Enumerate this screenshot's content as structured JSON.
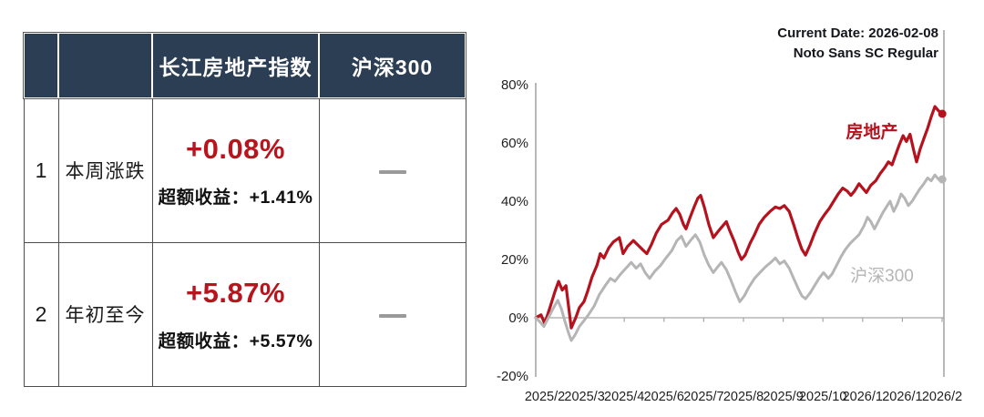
{
  "table": {
    "headers": {
      "num": "",
      "label": "",
      "index": "长江房地产指数",
      "benchmark": "沪深300"
    },
    "rows": [
      {
        "num": "1",
        "label": "本周涨跌",
        "value": "+0.08%",
        "excess": "超额收益：+1.41%",
        "benchmark_dash": "—"
      },
      {
        "num": "2",
        "label": "年初至今",
        "value": "+5.87%",
        "excess": "超额收益：+5.57%",
        "benchmark_dash": "—"
      }
    ]
  },
  "colors": {
    "header_navy": "#2c3e54",
    "accent_red": "#b9141e",
    "line_red": "#b5121e",
    "line_gray": "#b5b5b5",
    "axis_gray": "#a6a6a6",
    "dash_gray": "#9a9a9a"
  },
  "chart_data": {
    "type": "line",
    "title": "",
    "xlabel": "",
    "ylabel": "",
    "ylim": [
      -20,
      80
    ],
    "grid": "zero-line only",
    "legend_position": "inline labels on lines",
    "annotations": [
      "Current Date: 2026-02-08",
      "Noto Sans SC Regular"
    ],
    "x_tick_labels": [
      "2025/2",
      "2025/3",
      "2025/4",
      "2025/6",
      "2025/7",
      "2025/8",
      "2025/9",
      "2025/10",
      "2026/1",
      "2026/1",
      "2026/2"
    ],
    "y_ticks": [
      {
        "label": "80%",
        "value": 80
      },
      {
        "label": "60%",
        "value": 60
      },
      {
        "label": "40%",
        "value": 40
      },
      {
        "label": "20%",
        "value": 20
      },
      {
        "label": "0%",
        "value": 0
      },
      {
        "label": "-20%",
        "value": -20
      }
    ],
    "series": [
      {
        "name": "房地产",
        "color": "#b5121e",
        "width": 3.2,
        "end_dot": true,
        "points": [
          [
            0.0,
            0
          ],
          [
            0.013,
            1
          ],
          [
            0.022,
            -2
          ],
          [
            0.036,
            4
          ],
          [
            0.047,
            9
          ],
          [
            0.056,
            12.5
          ],
          [
            0.065,
            9.5
          ],
          [
            0.074,
            11
          ],
          [
            0.087,
            -3.5
          ],
          [
            0.098,
            0
          ],
          [
            0.107,
            3.5
          ],
          [
            0.118,
            5.5
          ],
          [
            0.127,
            9
          ],
          [
            0.138,
            14
          ],
          [
            0.15,
            18
          ],
          [
            0.158,
            22
          ],
          [
            0.167,
            20.5
          ],
          [
            0.179,
            24
          ],
          [
            0.19,
            26
          ],
          [
            0.205,
            27.5
          ],
          [
            0.214,
            22
          ],
          [
            0.225,
            24.5
          ],
          [
            0.239,
            26.5
          ],
          [
            0.25,
            25
          ],
          [
            0.261,
            23.5
          ],
          [
            0.272,
            22
          ],
          [
            0.283,
            25
          ],
          [
            0.295,
            29
          ],
          [
            0.308,
            32
          ],
          [
            0.324,
            33.5
          ],
          [
            0.335,
            36
          ],
          [
            0.344,
            37.5
          ],
          [
            0.353,
            35.5
          ],
          [
            0.362,
            32
          ],
          [
            0.368,
            30.5
          ],
          [
            0.377,
            34
          ],
          [
            0.388,
            38
          ],
          [
            0.397,
            41
          ],
          [
            0.404,
            42
          ],
          [
            0.413,
            38
          ],
          [
            0.424,
            32
          ],
          [
            0.435,
            27.5
          ],
          [
            0.446,
            29.5
          ],
          [
            0.455,
            31
          ],
          [
            0.467,
            33
          ],
          [
            0.475,
            30
          ],
          [
            0.487,
            26
          ],
          [
            0.496,
            22.5
          ],
          [
            0.504,
            20
          ],
          [
            0.513,
            21.5
          ],
          [
            0.525,
            25.5
          ],
          [
            0.536,
            28.5
          ],
          [
            0.547,
            32
          ],
          [
            0.56,
            34.5
          ],
          [
            0.574,
            36.5
          ],
          [
            0.587,
            38
          ],
          [
            0.598,
            37.5
          ],
          [
            0.609,
            38.5
          ],
          [
            0.621,
            36.5
          ],
          [
            0.632,
            32
          ],
          [
            0.643,
            27
          ],
          [
            0.652,
            23.5
          ],
          [
            0.661,
            21.5
          ],
          [
            0.672,
            25
          ],
          [
            0.683,
            29
          ],
          [
            0.696,
            33
          ],
          [
            0.708,
            35.5
          ],
          [
            0.719,
            37.5
          ],
          [
            0.73,
            40
          ],
          [
            0.741,
            42.5
          ],
          [
            0.752,
            44.5
          ],
          [
            0.763,
            43.5
          ],
          [
            0.772,
            42
          ],
          [
            0.781,
            43.5
          ],
          [
            0.792,
            46
          ],
          [
            0.801,
            44.5
          ],
          [
            0.81,
            43
          ],
          [
            0.821,
            45.5
          ],
          [
            0.833,
            47
          ],
          [
            0.844,
            49.5
          ],
          [
            0.855,
            51.5
          ],
          [
            0.864,
            53.5
          ],
          [
            0.873,
            52.5
          ],
          [
            0.882,
            56
          ],
          [
            0.891,
            59.5
          ],
          [
            0.9,
            62.5
          ],
          [
            0.908,
            60.5
          ],
          [
            0.917,
            63
          ],
          [
            0.926,
            57.5
          ],
          [
            0.933,
            53.5
          ],
          [
            0.942,
            58
          ],
          [
            0.951,
            61.5
          ],
          [
            0.96,
            65
          ],
          [
            0.969,
            69
          ],
          [
            0.978,
            72.5
          ],
          [
            0.987,
            71
          ],
          [
            0.996,
            70
          ]
        ]
      },
      {
        "name": "沪深300",
        "color": "#b5b5b5",
        "width": 3,
        "end_dot": true,
        "points": [
          [
            0.0,
            0
          ],
          [
            0.011,
            -1.5
          ],
          [
            0.02,
            -3
          ],
          [
            0.031,
            0
          ],
          [
            0.042,
            3
          ],
          [
            0.054,
            6
          ],
          [
            0.063,
            3
          ],
          [
            0.071,
            -1
          ],
          [
            0.08,
            -5
          ],
          [
            0.087,
            -7.8
          ],
          [
            0.096,
            -6
          ],
          [
            0.107,
            -3
          ],
          [
            0.118,
            -1
          ],
          [
            0.129,
            1
          ],
          [
            0.143,
            4
          ],
          [
            0.156,
            8
          ],
          [
            0.17,
            11
          ],
          [
            0.183,
            13.5
          ],
          [
            0.194,
            12.5
          ],
          [
            0.208,
            15
          ],
          [
            0.221,
            17
          ],
          [
            0.234,
            19
          ],
          [
            0.246,
            17
          ],
          [
            0.257,
            18.5
          ],
          [
            0.268,
            15.5
          ],
          [
            0.279,
            13.5
          ],
          [
            0.292,
            16
          ],
          [
            0.306,
            18
          ],
          [
            0.319,
            20.5
          ],
          [
            0.333,
            23
          ],
          [
            0.346,
            26.5
          ],
          [
            0.357,
            28
          ],
          [
            0.368,
            24.5
          ],
          [
            0.379,
            26.5
          ],
          [
            0.391,
            28.5
          ],
          [
            0.402,
            26
          ],
          [
            0.413,
            21.5
          ],
          [
            0.424,
            18
          ],
          [
            0.435,
            15.5
          ],
          [
            0.446,
            17.5
          ],
          [
            0.455,
            19
          ],
          [
            0.467,
            16.5
          ],
          [
            0.478,
            13
          ],
          [
            0.489,
            9
          ],
          [
            0.5,
            5.5
          ],
          [
            0.511,
            7.5
          ],
          [
            0.522,
            10.5
          ],
          [
            0.536,
            13.5
          ],
          [
            0.549,
            15.5
          ],
          [
            0.563,
            17.5
          ],
          [
            0.576,
            19
          ],
          [
            0.587,
            20.5
          ],
          [
            0.598,
            18.5
          ],
          [
            0.609,
            19.5
          ],
          [
            0.621,
            17
          ],
          [
            0.632,
            13.5
          ],
          [
            0.643,
            10
          ],
          [
            0.652,
            7.5
          ],
          [
            0.661,
            6.5
          ],
          [
            0.672,
            8.5
          ],
          [
            0.683,
            11
          ],
          [
            0.694,
            13.5
          ],
          [
            0.705,
            15.5
          ],
          [
            0.717,
            13.5
          ],
          [
            0.726,
            15
          ],
          [
            0.737,
            18
          ],
          [
            0.748,
            21
          ],
          [
            0.759,
            23.5
          ],
          [
            0.77,
            25.5
          ],
          [
            0.781,
            27
          ],
          [
            0.792,
            28.5
          ],
          [
            0.804,
            31.5
          ],
          [
            0.813,
            34.5
          ],
          [
            0.821,
            33
          ],
          [
            0.83,
            30.5
          ],
          [
            0.839,
            33
          ],
          [
            0.85,
            36
          ],
          [
            0.859,
            38
          ],
          [
            0.868,
            40
          ],
          [
            0.877,
            36.5
          ],
          [
            0.886,
            39
          ],
          [
            0.895,
            42.5
          ],
          [
            0.904,
            41
          ],
          [
            0.913,
            38.5
          ],
          [
            0.922,
            40
          ],
          [
            0.931,
            42
          ],
          [
            0.94,
            44
          ],
          [
            0.951,
            46
          ],
          [
            0.96,
            48
          ],
          [
            0.969,
            47
          ],
          [
            0.978,
            49
          ],
          [
            0.987,
            47.5
          ],
          [
            0.996,
            47.5
          ]
        ]
      }
    ]
  }
}
